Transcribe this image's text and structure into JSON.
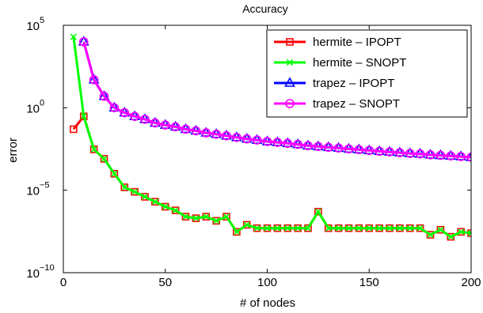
{
  "chart_data": {
    "type": "line",
    "title": "Accuracy",
    "xlabel": "# of nodes",
    "ylabel": "error",
    "xlim": [
      0,
      200
    ],
    "ylim": [
      1e-10,
      100000
    ],
    "yscale": "log",
    "grid": false,
    "legend_position": "top-right",
    "x_ticks": [
      "0",
      "50",
      "100",
      "150",
      "200"
    ],
    "y_ticks": [
      {
        "base": "10",
        "exp": "−10"
      },
      {
        "base": "10",
        "exp": "−5"
      },
      {
        "base": "10",
        "exp": "0"
      },
      {
        "base": "10",
        "exp": "5"
      }
    ],
    "x": [
      5,
      10,
      15,
      20,
      25,
      30,
      35,
      40,
      45,
      50,
      55,
      60,
      65,
      70,
      75,
      80,
      85,
      90,
      95,
      100,
      105,
      110,
      115,
      120,
      125,
      130,
      135,
      140,
      145,
      150,
      155,
      160,
      165,
      170,
      175,
      180,
      185,
      190,
      195,
      200
    ],
    "series": [
      {
        "name": "hermite – IPOPT",
        "color": "#ff0000",
        "marker": "square",
        "values": [
          0.05,
          0.3,
          0.003,
          0.0008,
          0.0001,
          1.5e-05,
          8e-06,
          4e-06,
          2e-06,
          1e-06,
          6e-07,
          2.5e-07,
          2e-07,
          2.5e-07,
          1.4e-07,
          2.5e-07,
          3e-08,
          8e-08,
          5e-08,
          5e-08,
          5e-08,
          5e-08,
          5e-08,
          5e-08,
          5e-07,
          5e-08,
          5e-08,
          5e-08,
          5e-08,
          5e-08,
          5e-08,
          5e-08,
          5e-08,
          5e-08,
          5e-08,
          2e-08,
          4e-08,
          1.5e-08,
          3e-08,
          2.5e-08
        ]
      },
      {
        "name": "hermite – SNOPT",
        "color": "#00ff00",
        "marker": "x",
        "values": [
          20000,
          0.3,
          0.003,
          0.0008,
          0.0001,
          1.5e-05,
          8e-06,
          4e-06,
          2e-06,
          1e-06,
          6e-07,
          2.5e-07,
          2e-07,
          2.5e-07,
          1.4e-07,
          2.5e-07,
          3e-08,
          8e-08,
          5e-08,
          5e-08,
          5e-08,
          5e-08,
          5e-08,
          5e-08,
          5e-07,
          5e-08,
          5e-08,
          5e-08,
          5e-08,
          5e-08,
          5e-08,
          5e-08,
          5e-08,
          5e-08,
          5e-08,
          2e-08,
          4e-08,
          1.5e-08,
          3e-08,
          2.5e-08
        ]
      },
      {
        "name": "trapez – IPOPT",
        "color": "#0000ff",
        "marker": "triangle",
        "values": [
          null,
          10000,
          50,
          5,
          1,
          0.5,
          0.3,
          0.2,
          0.12,
          0.09,
          0.07,
          0.05,
          0.04,
          0.03,
          0.025,
          0.02,
          0.016,
          0.013,
          0.011,
          0.009,
          0.008,
          0.007,
          0.006,
          0.005,
          0.0045,
          0.004,
          0.0036,
          0.0032,
          0.0029,
          0.0026,
          0.0023,
          0.0021,
          0.0019,
          0.0017,
          0.0016,
          0.0014,
          0.0013,
          0.0012,
          0.0011,
          0.001
        ]
      },
      {
        "name": "trapez – SNOPT",
        "color": "#ff00ff",
        "marker": "circle",
        "values": [
          null,
          10000,
          50,
          5,
          1,
          0.5,
          0.3,
          0.2,
          0.12,
          0.09,
          0.07,
          0.05,
          0.04,
          0.03,
          0.025,
          0.02,
          0.016,
          0.013,
          0.011,
          0.009,
          0.008,
          0.007,
          0.006,
          0.005,
          0.0045,
          0.004,
          0.0036,
          0.0032,
          0.0029,
          0.0026,
          0.0023,
          0.0021,
          0.0019,
          0.0017,
          0.0016,
          0.0014,
          0.0013,
          0.0012,
          0.0011,
          0.001
        ]
      }
    ]
  }
}
